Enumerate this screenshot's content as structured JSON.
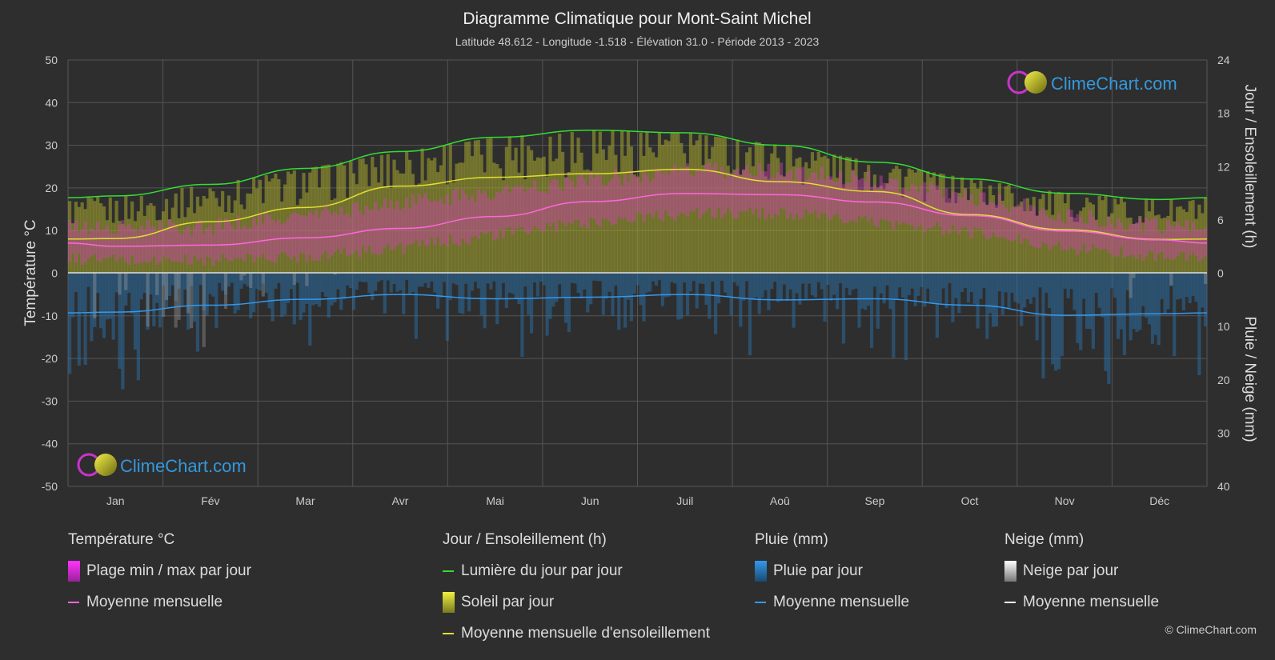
{
  "chart_data": {
    "type": "area",
    "title": "Diagramme Climatique pour Mont-Saint Michel",
    "subtitle": "Latitude 48.612 - Longitude -1.518 - Élévation 31.0 - Période 2013 - 2023",
    "categories": [
      "Jan",
      "Fév",
      "Mar",
      "Avr",
      "Mai",
      "Jun",
      "Juil",
      "Aoû",
      "Sep",
      "Oct",
      "Nov",
      "Déc"
    ],
    "y_left": {
      "label": "Température °C",
      "range": [
        -50,
        50
      ],
      "ticks": [
        50,
        40,
        30,
        20,
        10,
        0,
        -10,
        -20,
        -30,
        -40,
        -50
      ]
    },
    "y_right_top": {
      "label": "Jour / Ensoleillement (h)",
      "range": [
        0,
        24
      ],
      "ticks": [
        24,
        18,
        12,
        6,
        0
      ]
    },
    "y_right_bottom": {
      "label": "Pluie / Neige (mm)",
      "range": [
        0,
        40
      ],
      "ticks": [
        0,
        10,
        20,
        30,
        40
      ]
    },
    "series": [
      {
        "name": "Lumière du jour par jour",
        "axis": "hours",
        "color": "#33dd33",
        "values": [
          8.7,
          10.0,
          11.8,
          13.7,
          15.3,
          16.1,
          15.8,
          14.4,
          12.5,
          10.6,
          9.0,
          8.3
        ]
      },
      {
        "name": "Moyenne mensuelle d'ensoleillement",
        "axis": "hours",
        "color": "#e0e030",
        "values": [
          3.9,
          5.8,
          7.4,
          9.8,
          10.8,
          11.2,
          11.7,
          10.3,
          9.2,
          6.6,
          4.9,
          3.8
        ]
      },
      {
        "name": "Soleil par jour",
        "axis": "hours",
        "color": "#a8a830",
        "values": [
          7.0,
          8.6,
          10.3,
          12.3,
          13.8,
          14.4,
          14.3,
          13.4,
          11.6,
          9.5,
          7.7,
          7.0
        ]
      },
      {
        "name": "Plage min / max par jour",
        "axis": "temperature",
        "color": "#cc44aa",
        "min": [
          3.5,
          3.5,
          4.5,
          6.5,
          9.5,
          12.5,
          14.5,
          14.5,
          12.5,
          10.0,
          6.5,
          4.5
        ],
        "max": [
          10.0,
          10.5,
          13.0,
          16.0,
          18.5,
          21.5,
          23.5,
          23.5,
          21.5,
          17.5,
          13.0,
          10.5
        ]
      },
      {
        "name": "Moyenne mensuelle",
        "axis": "temperature",
        "color": "#ff66dd",
        "values": [
          6.3,
          6.6,
          8.3,
          10.5,
          13.3,
          16.8,
          18.7,
          18.4,
          16.7,
          13.5,
          9.9,
          7.8
        ]
      },
      {
        "name": "Pluie par jour",
        "axis": "precip",
        "color": "#2a6fa8",
        "values": [
          7.5,
          6.0,
          5.0,
          4.0,
          4.8,
          4.5,
          4.0,
          5.0,
          5.0,
          6.0,
          7.8,
          7.6
        ]
      },
      {
        "name": "Moyenne mensuelle",
        "axis": "precip",
        "color": "#3399ee",
        "values": [
          7.3,
          6.0,
          4.9,
          4.0,
          4.8,
          4.5,
          4.0,
          5.0,
          4.8,
          6.0,
          7.9,
          7.6
        ]
      },
      {
        "name": "Neige par jour",
        "axis": "precip",
        "color": "#aaaaaa",
        "values": [
          0.3,
          0.4,
          0.1,
          0,
          0,
          0,
          0,
          0,
          0,
          0,
          0,
          0.2
        ]
      }
    ],
    "grid": true
  },
  "watermark": {
    "text": "ClimeChart.com"
  },
  "legend": {
    "temperature": {
      "title": "Température °C",
      "range_label": "Plage min / max par jour",
      "mean_label": "Moyenne mensuelle"
    },
    "sun": {
      "title": "Jour / Ensoleillement (h)",
      "daylight_label": "Lumière du jour par jour",
      "sun_label": "Soleil par jour",
      "sun_mean_label": "Moyenne mensuelle d'ensoleillement"
    },
    "rain": {
      "title": "Pluie (mm)",
      "rain_label": "Pluie par jour",
      "mean_label": "Moyenne mensuelle"
    },
    "snow": {
      "title": "Neige (mm)",
      "snow_label": "Neige par jour",
      "mean_label": "Moyenne mensuelle"
    }
  },
  "copyright": "© ClimeChart.com",
  "colors": {
    "background": "#2e2e2e",
    "grid": "#555555",
    "daylight": "#33dd33",
    "sun_mean": "#e0e030",
    "temp_mean": "#ff66dd",
    "rain_mean": "#3399ee",
    "rain_bar": "#2a6fa8",
    "temp_range": "#cc44aa",
    "sun_bar": "#a8a830"
  }
}
